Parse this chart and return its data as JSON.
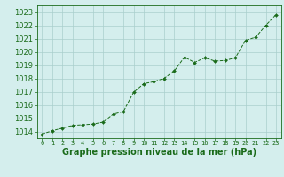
{
  "x": [
    0,
    1,
    2,
    3,
    4,
    5,
    6,
    7,
    8,
    9,
    10,
    11,
    12,
    13,
    14,
    15,
    16,
    17,
    18,
    19,
    20,
    21,
    22,
    23
  ],
  "y": [
    1013.8,
    1014.05,
    1014.25,
    1014.45,
    1014.5,
    1014.55,
    1014.7,
    1015.3,
    1015.5,
    1016.95,
    1017.6,
    1017.75,
    1018.0,
    1018.55,
    1019.6,
    1019.2,
    1019.55,
    1019.3,
    1019.35,
    1019.55,
    1020.85,
    1021.1,
    1022.0,
    1022.8
  ],
  "ylim": [
    1013.5,
    1023.5
  ],
  "yticks": [
    1014,
    1015,
    1016,
    1017,
    1018,
    1019,
    1020,
    1021,
    1022,
    1023
  ],
  "xlim": [
    -0.5,
    23.5
  ],
  "xticks": [
    0,
    1,
    2,
    3,
    4,
    5,
    6,
    7,
    8,
    9,
    10,
    11,
    12,
    13,
    14,
    15,
    16,
    17,
    18,
    19,
    20,
    21,
    22,
    23
  ],
  "line_color": "#1a6b1a",
  "marker": "D",
  "marker_size": 2.0,
  "bg_color": "#d4eeed",
  "grid_color": "#aacfcc",
  "xlabel": "Graphe pression niveau de la mer (hPa)",
  "xlabel_color": "#1a6b1a",
  "tick_color": "#1a6b1a",
  "axis_color": "#1a6b1a",
  "xlabel_fontsize": 7,
  "tick_fontsize": 6,
  "xtick_fontsize": 5
}
